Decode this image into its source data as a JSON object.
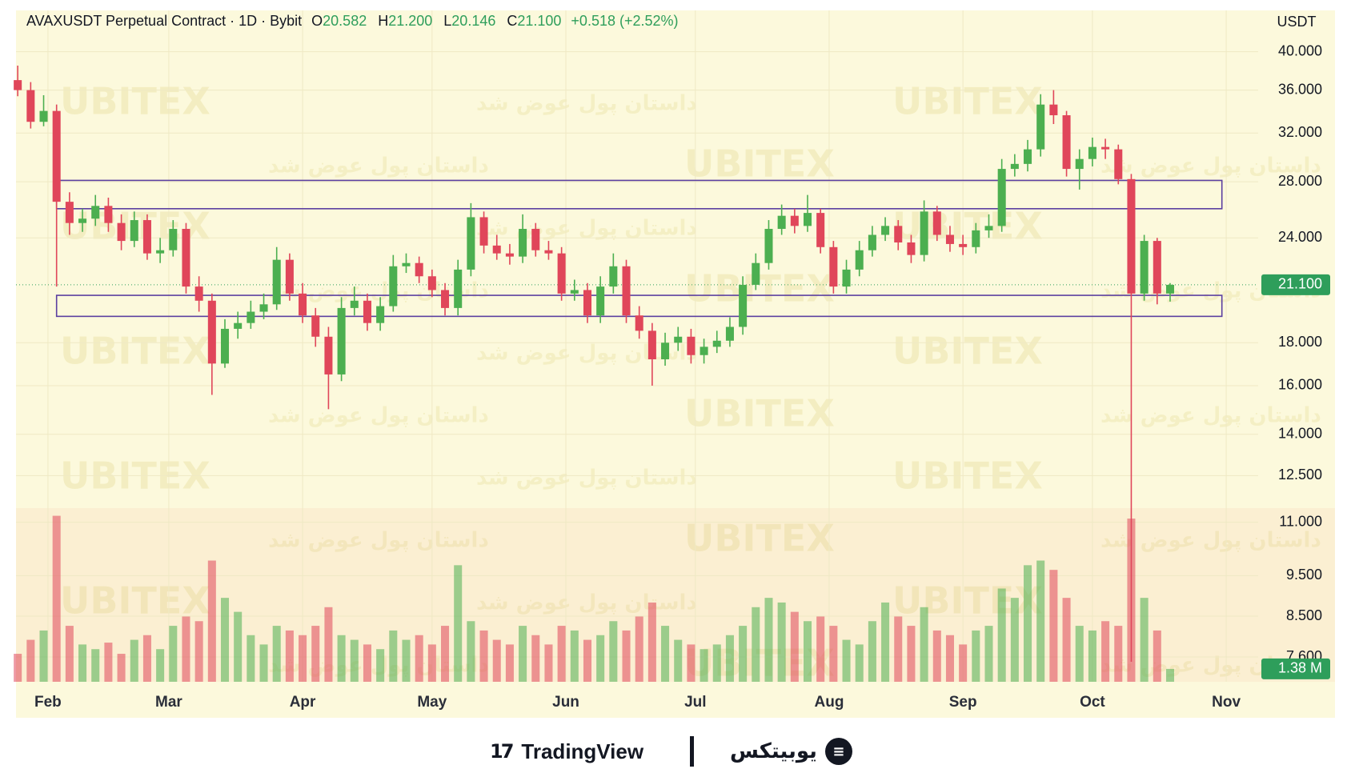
{
  "chart_data": {
    "type": "candlestick",
    "title": "AVAXUSDT Perpetual Contract · 1D · Bybit",
    "header_values": [
      {
        "key": "O",
        "value": "20.582"
      },
      {
        "key": "H",
        "value": "21.200"
      },
      {
        "key": "L",
        "value": "20.146"
      },
      {
        "key": "C",
        "value": "21.100"
      }
    ],
    "change": "+0.518 (+2.52%)",
    "currency": "USDT",
    "x": [
      25,
      28,
      31,
      34,
      37,
      40,
      43,
      46,
      49,
      52,
      55,
      58,
      61,
      64,
      67,
      70,
      73,
      76,
      79,
      82,
      85,
      88,
      91,
      94,
      97,
      100,
      103,
      106,
      109,
      112,
      115,
      118,
      121,
      124,
      127,
      130,
      133,
      136,
      139,
      142,
      145,
      148,
      151,
      154,
      157,
      160,
      163,
      166,
      169,
      172,
      175,
      178,
      181,
      184,
      187,
      190,
      193,
      196,
      199,
      202,
      205,
      208,
      211,
      214,
      217,
      220,
      223,
      226,
      229,
      232,
      235,
      238,
      241,
      244,
      247,
      250,
      253,
      256,
      259,
      262,
      265,
      268,
      271,
      274,
      277,
      280,
      283,
      286,
      289,
      292
    ],
    "open": [
      37.0,
      36.0,
      33.0,
      34.0,
      26.5,
      25.0,
      25.3,
      26.2,
      25.0,
      23.8,
      25.2,
      23.0,
      23.2,
      24.6,
      21.0,
      20.2,
      17.0,
      18.7,
      19.0,
      19.6,
      20.0,
      22.6,
      20.6,
      19.4,
      18.3,
      16.5,
      19.8,
      20.2,
      19.0,
      19.9,
      22.2,
      22.4,
      21.6,
      20.8,
      19.8,
      22.0,
      25.4,
      23.5,
      23.0,
      22.8,
      24.6,
      23.2,
      23.0,
      20.6,
      20.8,
      19.4,
      21.0,
      22.2,
      19.4,
      18.6,
      17.2,
      18.0,
      18.3,
      17.4,
      17.8,
      18.1,
      18.8,
      21.1,
      22.4,
      24.6,
      25.5,
      24.8,
      25.7,
      23.4,
      21.0,
      22.0,
      23.2,
      24.2,
      24.8,
      23.7,
      22.9,
      25.8,
      24.2,
      23.6,
      23.4,
      24.5,
      24.8,
      29.0,
      29.4,
      30.6,
      34.6,
      33.6,
      29.0,
      29.8,
      30.8,
      30.6,
      28.2,
      20.6,
      23.8,
      20.6
    ],
    "high": [
      38.5,
      36.8,
      35.5,
      34.6,
      27.2,
      26.0,
      27.0,
      26.8,
      25.6,
      25.8,
      25.6,
      24.0,
      25.2,
      25.0,
      21.6,
      20.6,
      19.2,
      19.6,
      20.2,
      20.6,
      23.4,
      23.0,
      21.2,
      19.8,
      18.8,
      20.4,
      21.0,
      20.6,
      20.4,
      22.9,
      23.0,
      22.8,
      22.0,
      21.2,
      22.6,
      26.4,
      25.8,
      24.2,
      23.6,
      25.6,
      25.0,
      23.8,
      23.4,
      21.4,
      21.2,
      21.6,
      23.0,
      22.6,
      19.9,
      19.0,
      18.5,
      18.8,
      18.7,
      18.2,
      18.6,
      19.3,
      21.6,
      23.0,
      25.2,
      26.3,
      26.0,
      27.0,
      26.0,
      23.8,
      22.6,
      23.8,
      24.8,
      25.4,
      25.2,
      24.2,
      26.6,
      26.2,
      24.8,
      24.2,
      25.0,
      25.6,
      29.8,
      30.2,
      31.4,
      35.6,
      36.0,
      34.0,
      30.6,
      31.6,
      31.5,
      31.0,
      28.6,
      24.2,
      24.0,
      21.2
    ],
    "low": [
      35.4,
      32.4,
      32.6,
      21.0,
      24.2,
      24.4,
      24.8,
      24.4,
      23.2,
      23.4,
      22.6,
      22.4,
      22.8,
      20.6,
      19.6,
      15.6,
      16.8,
      18.2,
      18.7,
      19.2,
      19.7,
      20.2,
      19.0,
      17.8,
      15.0,
      16.2,
      19.4,
      18.6,
      18.6,
      19.6,
      21.8,
      21.2,
      20.4,
      19.4,
      19.4,
      21.6,
      23.0,
      22.6,
      22.3,
      22.4,
      22.8,
      22.6,
      20.2,
      20.2,
      19.0,
      19.0,
      20.6,
      19.0,
      18.2,
      16.0,
      16.9,
      17.6,
      17.0,
      17.0,
      17.5,
      17.8,
      18.4,
      20.8,
      22.0,
      24.2,
      24.3,
      24.4,
      23.0,
      20.6,
      20.6,
      21.6,
      22.8,
      23.8,
      23.2,
      22.4,
      22.5,
      23.8,
      23.1,
      22.9,
      23.0,
      24.0,
      24.4,
      28.4,
      28.8,
      30.0,
      32.8,
      28.4,
      27.4,
      29.2,
      29.8,
      27.8,
      7.5,
      20.2,
      20.0,
      20.15
    ],
    "close": [
      36.0,
      33.0,
      34.0,
      26.5,
      25.0,
      25.3,
      26.2,
      25.0,
      23.8,
      25.2,
      23.0,
      23.2,
      24.6,
      21.0,
      20.2,
      17.0,
      18.7,
      19.0,
      19.6,
      20.0,
      22.6,
      20.6,
      19.4,
      18.3,
      16.5,
      19.8,
      20.2,
      19.0,
      19.9,
      22.2,
      22.4,
      21.6,
      20.8,
      19.8,
      22.0,
      25.4,
      23.5,
      23.0,
      22.8,
      24.6,
      23.2,
      23.0,
      20.6,
      20.8,
      19.4,
      21.0,
      22.2,
      19.4,
      18.6,
      17.2,
      18.0,
      18.3,
      17.4,
      17.8,
      18.1,
      18.8,
      21.1,
      22.4,
      24.6,
      25.5,
      24.8,
      25.7,
      23.4,
      21.0,
      22.0,
      23.2,
      24.2,
      24.8,
      23.7,
      22.9,
      25.8,
      24.2,
      23.6,
      23.4,
      24.5,
      24.8,
      29.0,
      29.4,
      30.6,
      34.6,
      33.6,
      29.0,
      29.8,
      30.8,
      30.6,
      28.2,
      20.6,
      23.8,
      20.6,
      21.1
    ],
    "volume": [
      3.0,
      4.5,
      5.5,
      17.8,
      6.0,
      4.0,
      3.5,
      4.2,
      3.0,
      4.5,
      5.0,
      3.5,
      6.0,
      7.0,
      6.5,
      13.0,
      9.0,
      7.5,
      5.0,
      4.0,
      6.0,
      5.5,
      5.0,
      6.0,
      8.0,
      5.0,
      4.5,
      4.0,
      3.5,
      5.5,
      4.5,
      5.0,
      4.0,
      6.0,
      12.5,
      6.5,
      5.5,
      4.5,
      4.0,
      6.0,
      5.0,
      4.0,
      6.0,
      5.5,
      4.5,
      5.0,
      6.5,
      5.5,
      7.0,
      8.5,
      6.0,
      4.5,
      4.0,
      3.5,
      4.0,
      5.0,
      6.0,
      8.0,
      9.0,
      8.5,
      7.5,
      6.5,
      7.0,
      6.0,
      4.5,
      4.0,
      6.5,
      8.5,
      7.0,
      6.0,
      8.0,
      5.5,
      5.0,
      4.0,
      5.5,
      6.0,
      10.0,
      9.0,
      12.5,
      13.0,
      12.0,
      9.0,
      6.0,
      5.5,
      6.5,
      6.0,
      17.5,
      9.0,
      5.5,
      1.38
    ],
    "volume_label": "1.38 M",
    "volume_lim": [
      0,
      72
    ],
    "xlim": [
      24.6,
      312.4
    ],
    "xticks": [
      {
        "value": 32,
        "label": "Feb"
      },
      {
        "value": 60,
        "label": "Mar"
      },
      {
        "value": 91,
        "label": "Apr"
      },
      {
        "value": 121,
        "label": "May"
      },
      {
        "value": 152,
        "label": "Jun"
      },
      {
        "value": 182,
        "label": "Jul"
      },
      {
        "value": 213,
        "label": "Aug"
      },
      {
        "value": 244,
        "label": "Sep"
      },
      {
        "value": 274,
        "label": "Oct"
      },
      {
        "value": 305,
        "label": "Nov"
      }
    ],
    "ylim": [
      7.1,
      44.8
    ],
    "log": true,
    "yticks": [
      {
        "value": 40,
        "label": "40.000"
      },
      {
        "value": 36,
        "label": "36.000"
      },
      {
        "value": 32,
        "label": "32.000"
      },
      {
        "value": 28,
        "label": "28.000"
      },
      {
        "value": 24,
        "label": "24.000"
      },
      {
        "value": 18,
        "label": "18.000"
      },
      {
        "value": 16,
        "label": "16.000"
      },
      {
        "value": 14,
        "label": "14.000"
      },
      {
        "value": 12.5,
        "label": "12.500"
      },
      {
        "value": 11,
        "label": "11.000"
      },
      {
        "value": 9.5,
        "label": "9.500"
      },
      {
        "value": 8.5,
        "label": "8.500"
      },
      {
        "value": 7.6,
        "label": "7.600"
      }
    ],
    "last_price": {
      "value": 21.1,
      "label": "21.100"
    },
    "zones": [
      {
        "x": [
          34,
          304
        ],
        "y": [
          26.0,
          28.1
        ]
      },
      {
        "x": [
          34,
          304
        ],
        "y": [
          19.35,
          20.5
        ]
      }
    ],
    "grid": true,
    "colors": {
      "up": "#4caf50",
      "down": "#e0465a",
      "zone": "#5b3fa0",
      "last": "#2e9e5b"
    },
    "watermark": {
      "brand": "UBITEX",
      "slogan": "داستان پول عوض شد"
    }
  },
  "footer": {
    "left": "TradingView",
    "right": "یوبیتکس"
  }
}
